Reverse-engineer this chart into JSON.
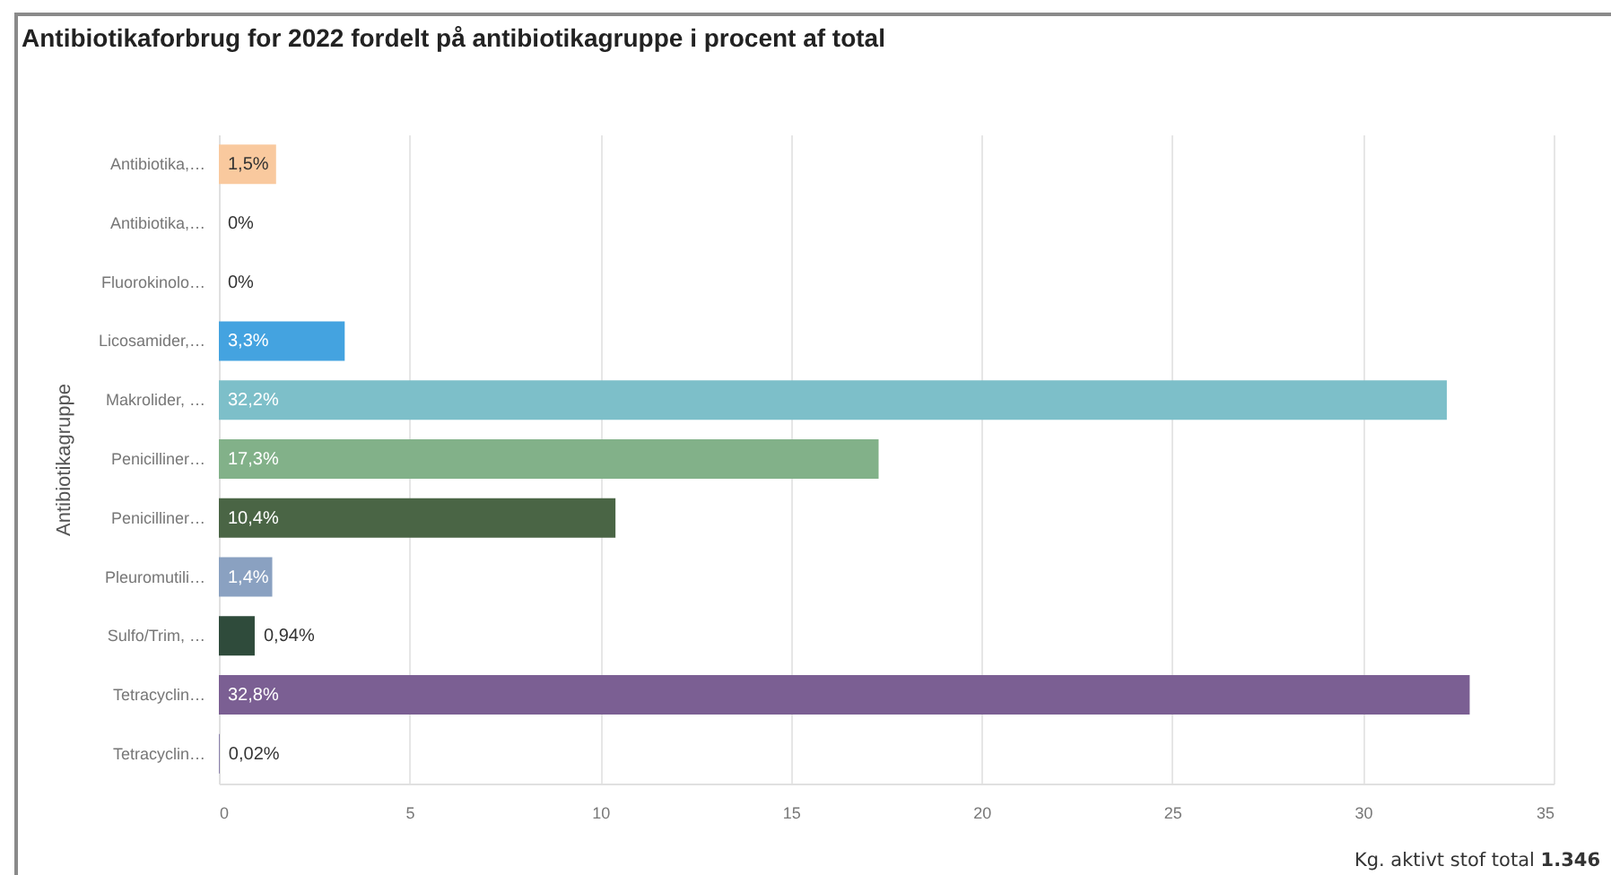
{
  "chart_data": {
    "type": "bar",
    "orientation": "horizontal",
    "title": "Antibiotikaforbrug for 2022 fordelt på antibiotikagruppe i procent af total",
    "ylabel": "Antibiotikagruppe",
    "categories": [
      "Antibiotika,…",
      "Antibiotika,…",
      "Fluorokinolo…",
      "Licosamider,…",
      "Makrolider, …",
      "Penicilliner…",
      "Penicilliner…",
      "Pleuromutili…",
      "Sulfo/Trim, …",
      "Tetracyclin…",
      "Tetracyclin…"
    ],
    "values": [
      1.5,
      0,
      0,
      3.3,
      32.2,
      17.3,
      10.4,
      1.4,
      0.94,
      32.8,
      0.02
    ],
    "value_labels": [
      "1,5%",
      "0%",
      "0%",
      "3,3%",
      "32,2%",
      "17,3%",
      "10,4%",
      "1,4%",
      "0,94%",
      "32,8%",
      "0,02%"
    ],
    "colors": [
      "#f9c99e",
      "#4b9fe1",
      "#f0a142",
      "#44a3e0",
      "#7dbfc9",
      "#82b189",
      "#4a6545",
      "#8aa1c1",
      "#2f4b3b",
      "#7b5f93",
      "#7c72a3"
    ],
    "xlim": [
      0,
      35
    ],
    "xticks": [
      0,
      5,
      10,
      15,
      20,
      25,
      30,
      35
    ],
    "grid": "x",
    "annotations": [
      "Kg. aktivt stof total 1.346"
    ]
  }
}
